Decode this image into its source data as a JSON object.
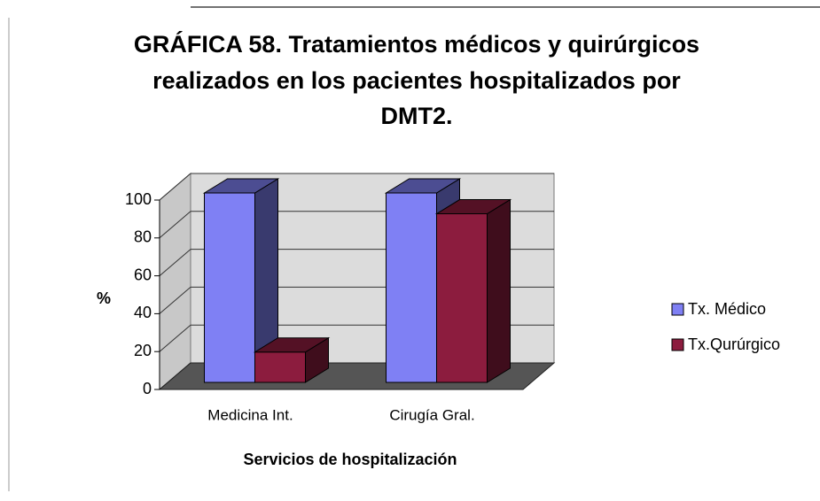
{
  "chart_data": {
    "type": "bar3d",
    "title": [
      "GRÁFICA 58. Tratamientos médicos y quirúrgicos",
      "realizados en los pacientes hospitalizados por",
      "DMT2."
    ],
    "categories": [
      "Medicina Int.",
      "Cirugía Gral."
    ],
    "series": [
      {
        "name": "Tx. Médico",
        "color": "#7f80f4",
        "values": [
          100,
          100
        ]
      },
      {
        "name": "Tx.Qurúrgico",
        "color": "#8c1c3e",
        "values": [
          16,
          89
        ]
      }
    ],
    "xlabel": "Servicios de hospitalización",
    "ylabel": "%",
    "ylim": [
      0,
      100
    ],
    "yticks": [
      0,
      20,
      40,
      60,
      80,
      100
    ],
    "grid": true,
    "legend": "right"
  }
}
